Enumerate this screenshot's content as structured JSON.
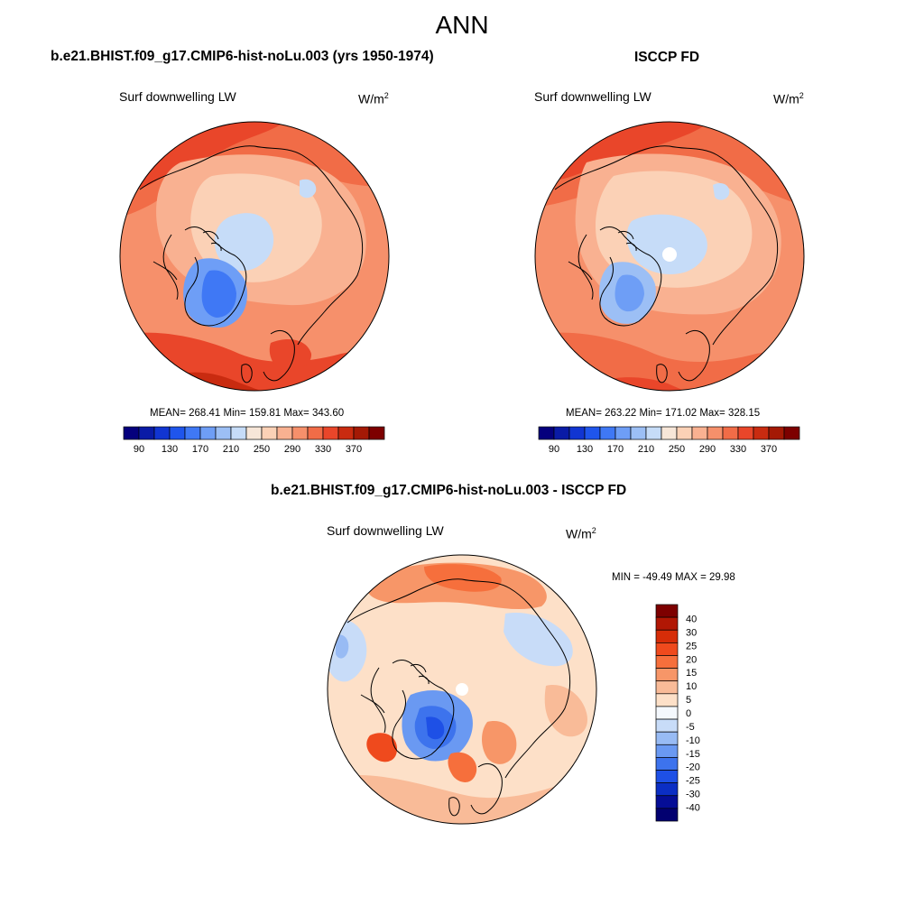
{
  "figure": {
    "title": "ANN",
    "colors": {
      "land_outline": "#000000",
      "missing": "#ffffff"
    }
  },
  "panels": [
    {
      "id": "model",
      "title": "b.e21.BHIST.f09_g17.CMIP6-hist-noLu.003 (yrs 1950-1974)",
      "variable": "Surf downwelling LW",
      "units_base": "W/m",
      "units_exp": "2",
      "stats_text": "MEAN= 268.41  Min= 159.81  Max= 343.60",
      "mean": 268.41,
      "min": 159.81,
      "max": 343.6
    },
    {
      "id": "obs",
      "title": "ISCCP FD",
      "variable": "Surf downwelling LW",
      "units_base": "W/m",
      "units_exp": "2",
      "stats_text": "MEAN= 263.22  Min= 171.02  Max= 328.15",
      "mean": 263.22,
      "min": 171.02,
      "max": 328.15
    },
    {
      "id": "diff",
      "title": "b.e21.BHIST.f09_g17.CMIP6-hist-noLu.003 - ISCCP FD",
      "variable": "Surf downwelling LW",
      "units_base": "W/m",
      "units_exp": "2",
      "stats_text": "MIN = -49.49 MAX =  29.98",
      "min": -49.49,
      "max": 29.98
    }
  ],
  "colorbar_abs": {
    "orientation": "horizontal",
    "colors": [
      "#05007d",
      "#0a1ba6",
      "#1135d2",
      "#1f55ec",
      "#3f78f5",
      "#6e9ef6",
      "#9cbff5",
      "#c6dcf8",
      "#f7e6d8",
      "#fbd1b6",
      "#f9b191",
      "#f6906b",
      "#f16c47",
      "#e9462a",
      "#c92b10",
      "#a41905",
      "#7d0000"
    ],
    "tick_labels": [
      "90",
      "130",
      "170",
      "210",
      "250",
      "290",
      "330",
      "370"
    ]
  },
  "colorbar_diff": {
    "orientation": "vertical",
    "colors": [
      "#7d0000",
      "#b11704",
      "#d62d08",
      "#ef4a1d",
      "#f66f3c",
      "#f79668",
      "#f9bb98",
      "#fde0c8",
      "#f4f8fd",
      "#c8dcf8",
      "#98bbf4",
      "#6a99f2",
      "#3d73ed",
      "#1e50e6",
      "#0b2ec4",
      "#050d96",
      "#020070"
    ],
    "tick_labels": [
      "40",
      "30",
      "25",
      "20",
      "15",
      "10",
      "5",
      "0",
      "-5",
      "-10",
      "-15",
      "-20",
      "-25",
      "-30",
      "-40"
    ]
  }
}
